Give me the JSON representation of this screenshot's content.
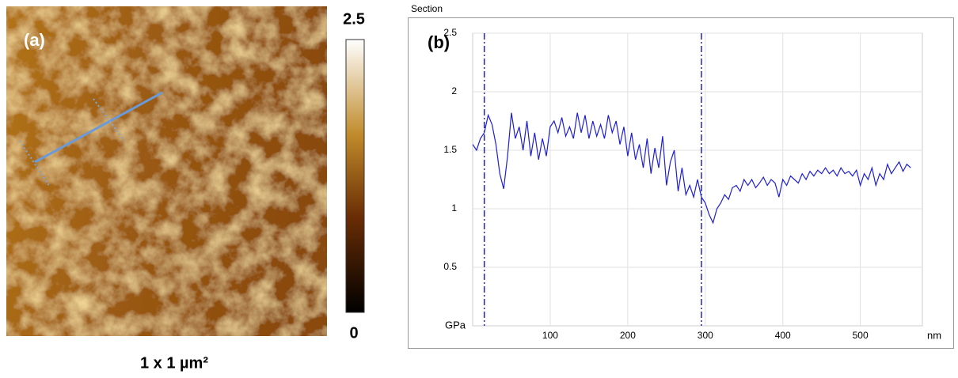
{
  "panel_a": {
    "label": "(a)",
    "caption": "1 x 1 µm²",
    "colorbar": {
      "lim": [
        0,
        2.5
      ],
      "ticks": [
        0,
        2.5
      ]
    }
  },
  "chart_data": {
    "type": "line",
    "window_title": "Section",
    "panel_label": "(b)",
    "y_unit": "GPa",
    "x_unit": "nm",
    "xlim": [
      0,
      580
    ],
    "ylim": [
      0,
      2.5
    ],
    "xticks": [
      100,
      200,
      300,
      400,
      500
    ],
    "yticks": [
      0.5,
      1,
      1.5,
      2,
      2.5
    ],
    "grid": true,
    "cursors": [
      15,
      295
    ],
    "cursor_color": "#2323c8",
    "series": [
      {
        "color": "#1f1fd0",
        "x": [
          0,
          5,
          10,
          15,
          20,
          25,
          30,
          35,
          40,
          45,
          50,
          55,
          60,
          65,
          70,
          75,
          80,
          85,
          90,
          95,
          100,
          105,
          110,
          115,
          120,
          125,
          130,
          135,
          140,
          145,
          150,
          155,
          160,
          165,
          170,
          175,
          180,
          185,
          190,
          195,
          200,
          205,
          210,
          215,
          220,
          225,
          230,
          235,
          240,
          245,
          250,
          255,
          260,
          265,
          270,
          275,
          280,
          285,
          290,
          295,
          300,
          305,
          310,
          315,
          320,
          325,
          330,
          335,
          340,
          345,
          350,
          355,
          360,
          365,
          370,
          375,
          380,
          385,
          390,
          395,
          400,
          405,
          410,
          415,
          420,
          425,
          430,
          435,
          440,
          445,
          450,
          455,
          460,
          465,
          470,
          475,
          480,
          485,
          490,
          495,
          500,
          505,
          510,
          515,
          520,
          525,
          530,
          535,
          540,
          545,
          550,
          555,
          560,
          565
        ],
        "values": [
          1.55,
          1.5,
          1.6,
          1.65,
          1.8,
          1.72,
          1.55,
          1.3,
          1.17,
          1.45,
          1.82,
          1.6,
          1.7,
          1.5,
          1.75,
          1.45,
          1.65,
          1.42,
          1.6,
          1.45,
          1.7,
          1.75,
          1.65,
          1.78,
          1.62,
          1.7,
          1.6,
          1.82,
          1.65,
          1.8,
          1.6,
          1.75,
          1.62,
          1.72,
          1.6,
          1.8,
          1.65,
          1.75,
          1.55,
          1.7,
          1.45,
          1.65,
          1.42,
          1.55,
          1.35,
          1.6,
          1.3,
          1.52,
          1.35,
          1.62,
          1.2,
          1.4,
          1.5,
          1.15,
          1.35,
          1.12,
          1.2,
          1.1,
          1.25,
          1.1,
          1.05,
          0.95,
          0.88,
          1.0,
          1.05,
          1.12,
          1.08,
          1.18,
          1.2,
          1.15,
          1.25,
          1.2,
          1.25,
          1.18,
          1.22,
          1.27,
          1.2,
          1.25,
          1.22,
          1.1,
          1.25,
          1.2,
          1.28,
          1.25,
          1.22,
          1.3,
          1.25,
          1.32,
          1.28,
          1.33,
          1.3,
          1.35,
          1.3,
          1.33,
          1.28,
          1.35,
          1.3,
          1.32,
          1.28,
          1.33,
          1.2,
          1.3,
          1.25,
          1.35,
          1.2,
          1.3,
          1.25,
          1.38,
          1.3,
          1.35,
          1.4,
          1.32,
          1.38,
          1.35
        ]
      }
    ]
  }
}
